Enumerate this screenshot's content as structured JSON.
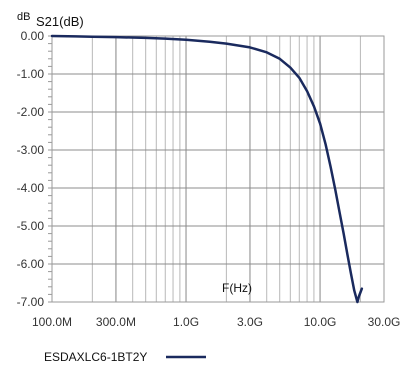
{
  "chart_data": {
    "type": "line",
    "ylabel": "dB",
    "title": "S21(dB)",
    "xlabel": "F(Hz)",
    "x_scale": "log",
    "xlim": [
      100000000,
      30000000000
    ],
    "ylim": [
      -7,
      0
    ],
    "grid": true,
    "x_major_ticks": [
      100000000,
      300000000,
      1000000000,
      3000000000,
      10000000000,
      30000000000
    ],
    "x_tick_labels": [
      "100.0M",
      "300.0M",
      "1.0G",
      "3.0G",
      "10.0G",
      "30.0G"
    ],
    "y_ticks": [
      0,
      -1,
      -2,
      -3,
      -4,
      -5,
      -6,
      -7
    ],
    "y_tick_labels": [
      "0.00",
      "-1.00",
      "-2.00",
      "-3.00",
      "-4.00",
      "-5.00",
      "-6.00",
      "-7.00"
    ],
    "legend_position": "bottom-left",
    "series": [
      {
        "name": "ESDAXLC6-1BT2Y",
        "color": "#1a2a5e",
        "x": [
          100000000,
          150000000,
          200000000,
          300000000,
          500000000,
          700000000,
          1000000000,
          1500000000,
          2000000000,
          3000000000,
          4000000000,
          5000000000,
          6000000000,
          7000000000,
          8000000000,
          9000000000,
          10000000000,
          11000000000,
          12000000000,
          13000000000,
          14000000000,
          15000000000,
          16000000000,
          17000000000,
          18000000000,
          19000000000,
          19500000000,
          20000000000,
          20500000000
        ],
        "y": [
          0.0,
          -0.01,
          -0.02,
          -0.03,
          -0.05,
          -0.07,
          -0.1,
          -0.15,
          -0.2,
          -0.3,
          -0.43,
          -0.6,
          -0.83,
          -1.1,
          -1.45,
          -1.85,
          -2.3,
          -2.85,
          -3.45,
          -4.05,
          -4.65,
          -5.2,
          -5.75,
          -6.25,
          -6.7,
          -7.0,
          -6.85,
          -6.75,
          -6.65
        ]
      }
    ]
  }
}
